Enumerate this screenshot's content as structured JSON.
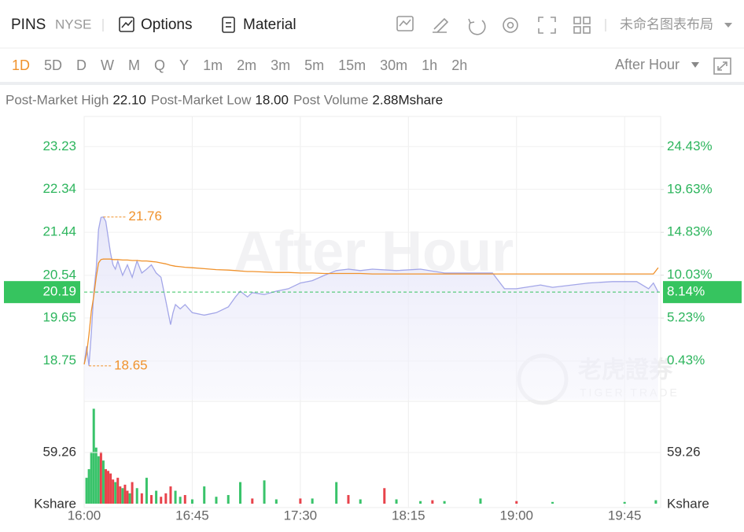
{
  "toolbar": {
    "symbol": "PINS",
    "exchange": "NYSE",
    "options": "Options",
    "material": "Material",
    "layout": "未命名图表布局"
  },
  "periods": [
    "1D",
    "5D",
    "D",
    "W",
    "M",
    "Q",
    "Y",
    "1m",
    "2m",
    "3m",
    "5m",
    "15m",
    "30m",
    "1h",
    "2h"
  ],
  "active_period": "1D",
  "session": "After Hour",
  "stats": [
    {
      "label": "Post-Market High",
      "value": "22.10"
    },
    {
      "label": "Post-Market Low",
      "value": "18.00"
    },
    {
      "label": "Post Volume",
      "value": "2.88Mshare"
    }
  ],
  "watermark": "After Hour",
  "logo": {
    "cn": "老虎證券",
    "en": "TIGER TRADE"
  },
  "chart_data": [
    {
      "type": "line",
      "x": [
        "16:00",
        "16:01",
        "16:02",
        "16:03",
        "16:04",
        "16:05",
        "16:06",
        "16:07",
        "16:08",
        "16:09",
        "16:10",
        "16:11",
        "16:12",
        "16:13",
        "16:14",
        "16:16",
        "16:18",
        "16:20",
        "16:22",
        "16:24",
        "16:26",
        "16:28",
        "16:30",
        "16:32",
        "16:34",
        "16:36",
        "16:37",
        "16:38",
        "16:40",
        "16:42",
        "16:45",
        "16:50",
        "16:55",
        "17:00",
        "17:03",
        "17:05",
        "17:08",
        "17:10",
        "17:15",
        "17:20",
        "17:25",
        "17:30",
        "17:35",
        "17:40",
        "17:45",
        "17:50",
        "17:55",
        "18:00",
        "18:10",
        "18:20",
        "18:30",
        "18:40",
        "18:50",
        "18:55",
        "19:00",
        "19:10",
        "19:15",
        "19:30",
        "19:40",
        "19:50",
        "19:55",
        "19:57",
        "19:59"
      ],
      "series": [
        {
          "color": "#a3a6e8",
          "fill": "#eeeefb",
          "values": [
            18.68,
            19.06,
            18.65,
            19.35,
            20.18,
            20.67,
            21.5,
            21.75,
            21.76,
            21.67,
            21.34,
            21.0,
            20.76,
            20.67,
            20.84,
            20.54,
            20.76,
            20.5,
            20.84,
            20.59,
            20.67,
            20.76,
            20.59,
            20.5,
            20.01,
            19.51,
            19.76,
            19.93,
            19.84,
            19.93,
            19.76,
            19.71,
            19.76,
            19.88,
            20.09,
            20.21,
            20.09,
            20.18,
            20.14,
            20.21,
            20.26,
            20.38,
            20.43,
            20.54,
            20.64,
            20.67,
            20.64,
            20.67,
            20.64,
            20.67,
            20.59,
            20.59,
            20.59,
            20.26,
            20.26,
            20.34,
            20.29,
            20.38,
            20.41,
            20.41,
            20.26,
            20.38,
            20.19
          ]
        },
        {
          "color": "#f0922c",
          "values": [
            18.68,
            18.9,
            19.3,
            19.8,
            20.1,
            20.5,
            20.8,
            20.87,
            20.88,
            20.88,
            20.88,
            20.88,
            20.87,
            20.87,
            20.87,
            20.86,
            20.86,
            20.85,
            20.85,
            20.84,
            20.84,
            20.83,
            20.82,
            20.8,
            20.78,
            20.75,
            20.74,
            20.73,
            20.72,
            20.71,
            20.7,
            20.68,
            20.66,
            20.65,
            20.64,
            20.63,
            20.62,
            20.62,
            20.61,
            20.6,
            20.6,
            20.59,
            20.59,
            20.58,
            20.58,
            20.58,
            20.58,
            20.57,
            20.57,
            20.57,
            20.57,
            20.57,
            20.57,
            20.57,
            20.57,
            20.57,
            20.57,
            20.57,
            20.57,
            20.57,
            20.57,
            20.57,
            20.7
          ]
        }
      ],
      "xlim": [
        "16:00",
        "20:00"
      ],
      "xticks": [
        "16:00",
        "16:45",
        "17:30",
        "18:15",
        "19:00",
        "19:45"
      ],
      "ylim": [
        17.94,
        23.86
      ],
      "yticks": [
        18.75,
        19.65,
        20.54,
        21.44,
        22.34,
        23.23
      ],
      "y2lim": [
        -3.93,
        27.81
      ],
      "y2ticks": [
        {
          "value": 0.43,
          "label": "0.43%"
        },
        {
          "value": 5.23,
          "label": "5.23%"
        },
        {
          "value": 10.03,
          "label": "10.03%"
        },
        {
          "value": 14.83,
          "label": "14.83%"
        },
        {
          "value": 19.63,
          "label": "19.63%"
        },
        {
          "value": 24.43,
          "label": "24.43%"
        }
      ],
      "annotations": [
        {
          "x": "16:08",
          "value": 21.76
        },
        {
          "x": "16:02",
          "value": 18.65
        }
      ],
      "last": {
        "value": 20.19,
        "change": {
          "value": 8.14,
          "label": "8.14%"
        },
        "color": "#36c45f"
      },
      "axis_color": "#2db55d",
      "grid": true
    },
    {
      "type": "bar",
      "x": [
        "16:01",
        "16:02",
        "16:03",
        "16:04",
        "16:05",
        "16:06",
        "16:07",
        "16:08",
        "16:09",
        "16:10",
        "16:11",
        "16:12",
        "16:13",
        "16:14",
        "16:15",
        "16:16",
        "16:17",
        "16:18",
        "16:19",
        "16:20",
        "16:22",
        "16:24",
        "16:26",
        "16:28",
        "16:30",
        "16:32",
        "16:34",
        "16:36",
        "16:38",
        "16:40",
        "16:42",
        "16:45",
        "16:50",
        "16:55",
        "17:00",
        "17:05",
        "17:10",
        "17:15",
        "17:20",
        "17:30",
        "17:35",
        "17:45",
        "17:50",
        "17:55",
        "18:05",
        "18:10",
        "18:20",
        "18:25",
        "18:30",
        "18:45",
        "19:00",
        "19:15",
        "19:45",
        "19:58"
      ],
      "values": [
        30,
        40,
        60,
        110,
        65,
        55,
        60,
        50,
        40,
        38,
        35,
        28,
        25,
        30,
        20,
        18,
        22,
        15,
        12,
        25,
        18,
        12,
        30,
        10,
        15,
        8,
        12,
        20,
        15,
        8,
        10,
        5,
        20,
        8,
        10,
        25,
        6,
        27,
        5,
        6,
        6,
        25,
        10,
        5,
        18,
        5,
        3,
        4,
        3,
        6,
        3,
        2,
        2,
        4
      ],
      "colors": [
        "#39c36a",
        "#39c36a",
        "#39c36a",
        "#39c36a",
        "#39c36a",
        "#39c36a",
        "#e8434b",
        "#39c36a",
        "#e8434b",
        "#e8434b",
        "#e8434b",
        "#e8434b",
        "#39c36a",
        "#e8434b",
        "#e8434b",
        "#39c36a",
        "#e8434b",
        "#e8434b",
        "#39c36a",
        "#e8434b",
        "#39c36a",
        "#e8434b",
        "#39c36a",
        "#e8434b",
        "#39c36a",
        "#e8434b",
        "#e8434b",
        "#e8434b",
        "#39c36a",
        "#39c36a",
        "#e8434b",
        "#39c36a",
        "#39c36a",
        "#39c36a",
        "#39c36a",
        "#39c36a",
        "#e8434b",
        "#39c36a",
        "#39c36a",
        "#e8434b",
        "#39c36a",
        "#39c36a",
        "#e8434b",
        "#39c36a",
        "#e8434b",
        "#39c36a",
        "#39c36a",
        "#e8434b",
        "#39c36a",
        "#39c36a",
        "#e8434b",
        "#39c36a",
        "#39c36a",
        "#39c36a"
      ],
      "ylim": [
        0,
        114
      ],
      "yticks": [
        59.26
      ],
      "ylabel": "Kshare"
    }
  ]
}
